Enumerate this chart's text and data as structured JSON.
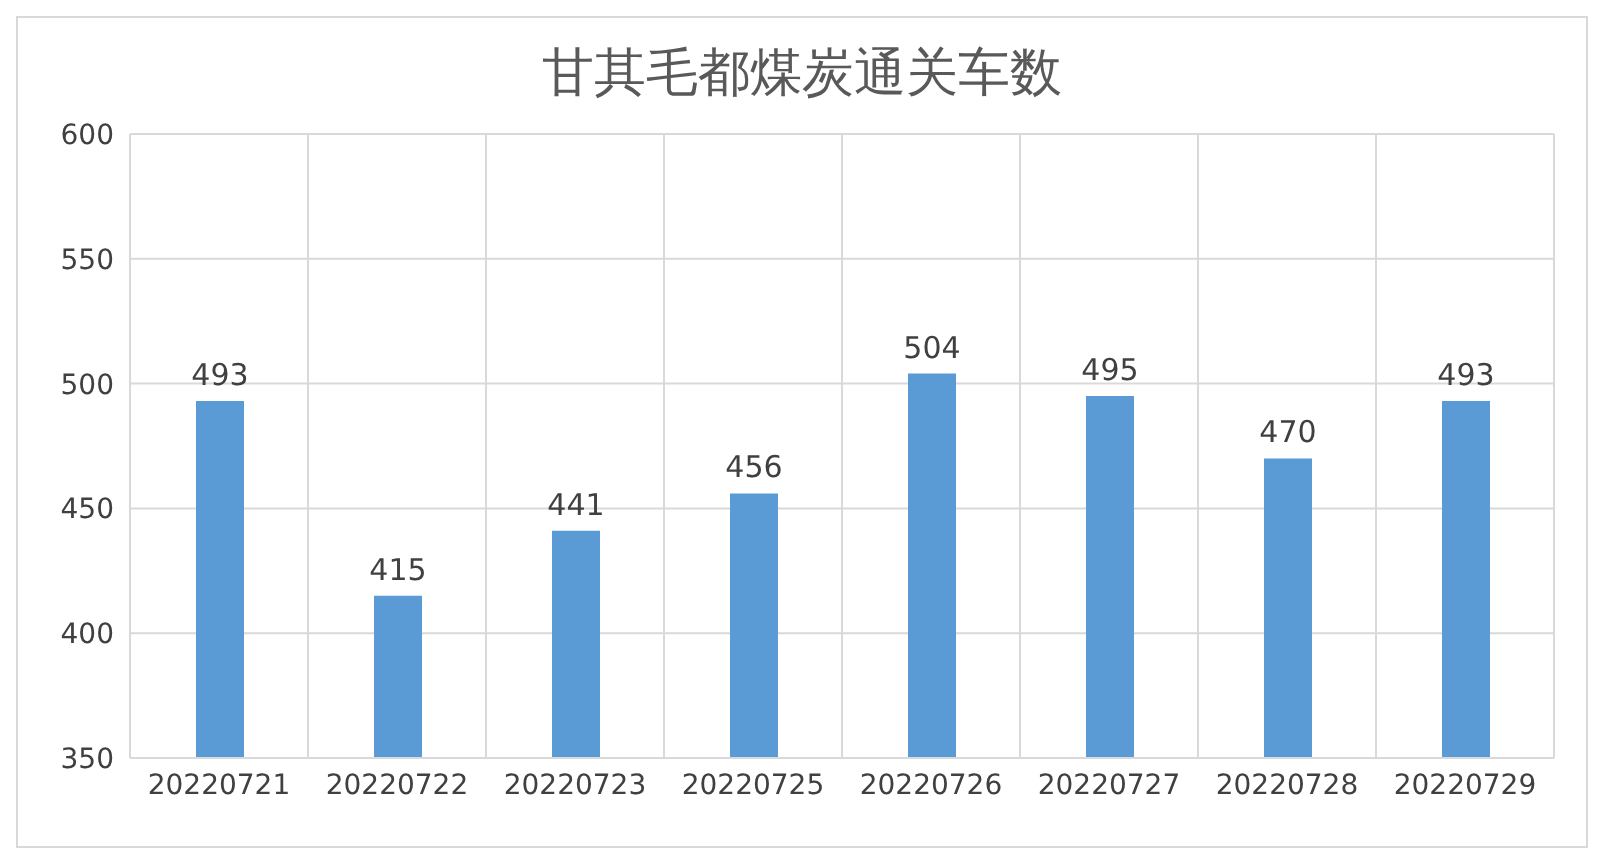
{
  "chart_data": {
    "type": "bar",
    "title": "甘其毛都煤炭通关车数",
    "categories": [
      "20220721",
      "20220722",
      "20220723",
      "20220725",
      "20220726",
      "20220727",
      "20220728",
      "20220729"
    ],
    "values": [
      493,
      415,
      441,
      456,
      504,
      495,
      470,
      493
    ],
    "color": "#5b9bd5",
    "ylim": [
      350,
      600
    ],
    "yticks": [
      350,
      400,
      450,
      500,
      550,
      600
    ],
    "grid": true,
    "data_labels": true
  }
}
